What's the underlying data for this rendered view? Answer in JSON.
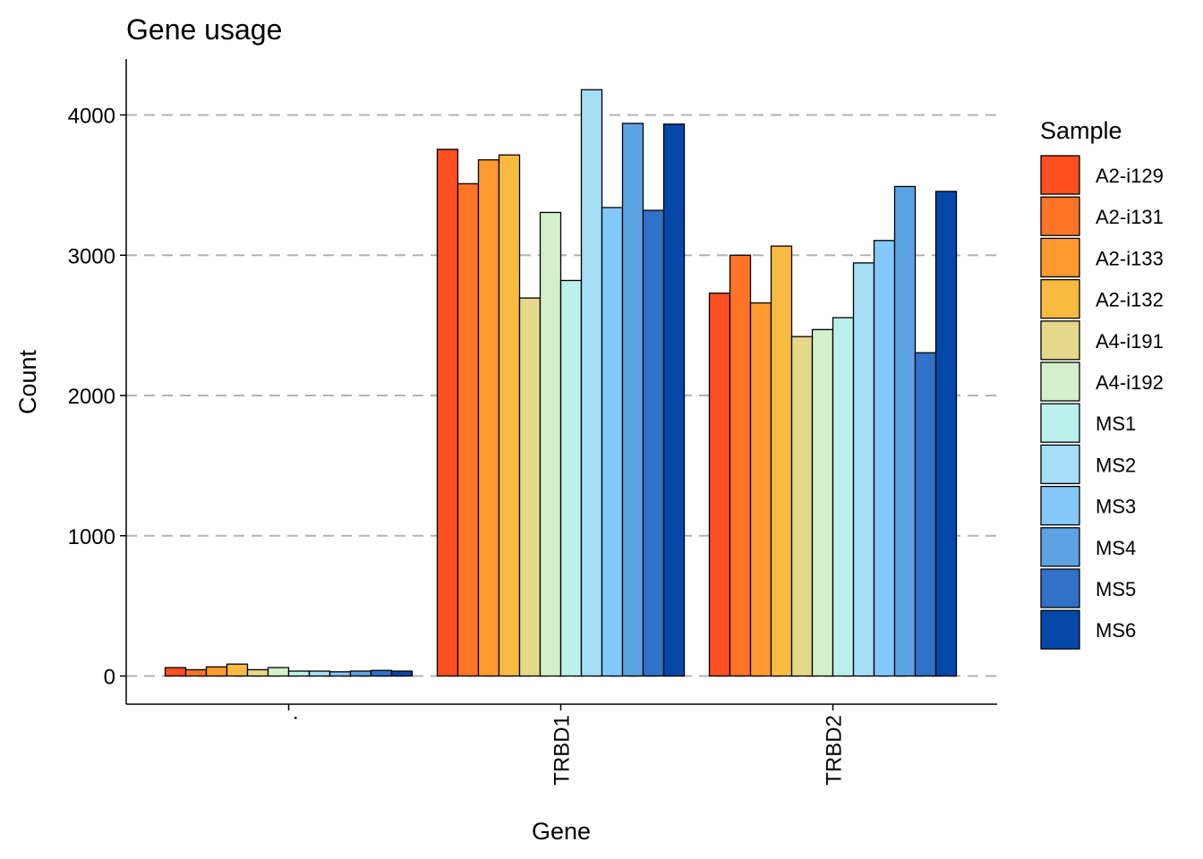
{
  "chart_data": {
    "type": "bar",
    "title": "Gene usage",
    "xlabel": "Gene",
    "ylabel": "Count",
    "categories": [
      ".",
      "TRBD1",
      "TRBD2"
    ],
    "yticks": [
      0,
      1000,
      2000,
      3000,
      4000
    ],
    "ylim": [
      -200,
      4400
    ],
    "grid": "horizontal dashed",
    "legend": {
      "title": "Sample",
      "position": "right"
    },
    "series": [
      {
        "name": "A2-i129",
        "color": "#FF4E20",
        "values": [
          60,
          3755,
          2730
        ]
      },
      {
        "name": "A2-i131",
        "color": "#FF7426",
        "values": [
          45,
          3510,
          3000
        ]
      },
      {
        "name": "A2-i133",
        "color": "#FF9A30",
        "values": [
          65,
          3680,
          2660
        ]
      },
      {
        "name": "A2-i132",
        "color": "#F9BA42",
        "values": [
          85,
          3715,
          3065
        ]
      },
      {
        "name": "A4-i191",
        "color": "#E5D88A",
        "values": [
          45,
          2695,
          2420
        ]
      },
      {
        "name": "A4-i192",
        "color": "#D4EFCB",
        "values": [
          60,
          3305,
          2470
        ]
      },
      {
        "name": "MS1",
        "color": "#BAF1EC",
        "values": [
          35,
          2820,
          2555
        ]
      },
      {
        "name": "MS2",
        "color": "#A5DEF6",
        "values": [
          35,
          4180,
          2945
        ]
      },
      {
        "name": "MS3",
        "color": "#84C8FA",
        "values": [
          30,
          3340,
          3105
        ]
      },
      {
        "name": "MS4",
        "color": "#5DA3E4",
        "values": [
          35,
          3940,
          3490
        ]
      },
      {
        "name": "MS5",
        "color": "#3171C7",
        "values": [
          40,
          3320,
          2305
        ]
      },
      {
        "name": "MS6",
        "color": "#0548A8",
        "values": [
          35,
          3935,
          3455
        ]
      }
    ]
  }
}
